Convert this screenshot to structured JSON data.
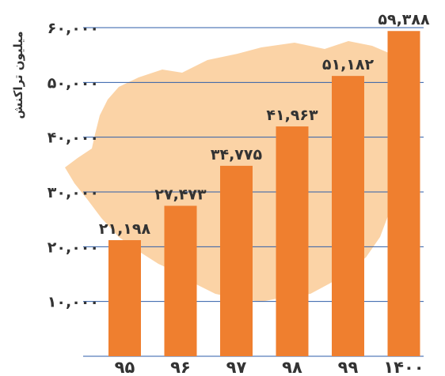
{
  "chart_data": {
    "type": "bar",
    "ylabel": "میلیون تراکنش",
    "categories": [
      "95",
      "96",
      "97",
      "98",
      "99",
      "1400"
    ],
    "category_labels": [
      "۹۵",
      "۹۶",
      "۹۷",
      "۹۸",
      "۹۹",
      "۱۴۰۰"
    ],
    "values": [
      21198,
      27473,
      34775,
      41963,
      51182,
      59388
    ],
    "value_labels": [
      "۲۱,۱۹۸",
      "۲۷,۴۷۳",
      "۳۴,۷۷۵",
      "۴۱,۹۶۳",
      "۵۱,۱۸۲",
      "۵۹,۳۸۸"
    ],
    "ylim": [
      0,
      60000
    ],
    "yticks": [
      10000,
      20000,
      30000,
      40000,
      50000,
      60000
    ],
    "ytick_labels": [
      "۱۰,۰۰۰",
      "۲۰,۰۰۰",
      "۳۰,۰۰۰",
      "۴۰,۰۰۰",
      "۵۰,۰۰۰",
      "۶۰,۰۰۰"
    ],
    "grid": true,
    "colors": {
      "bar": "#ef7f2f",
      "grid": "#2e5ea8",
      "background_shape": "#fbd3a6",
      "text": "#333333"
    }
  }
}
